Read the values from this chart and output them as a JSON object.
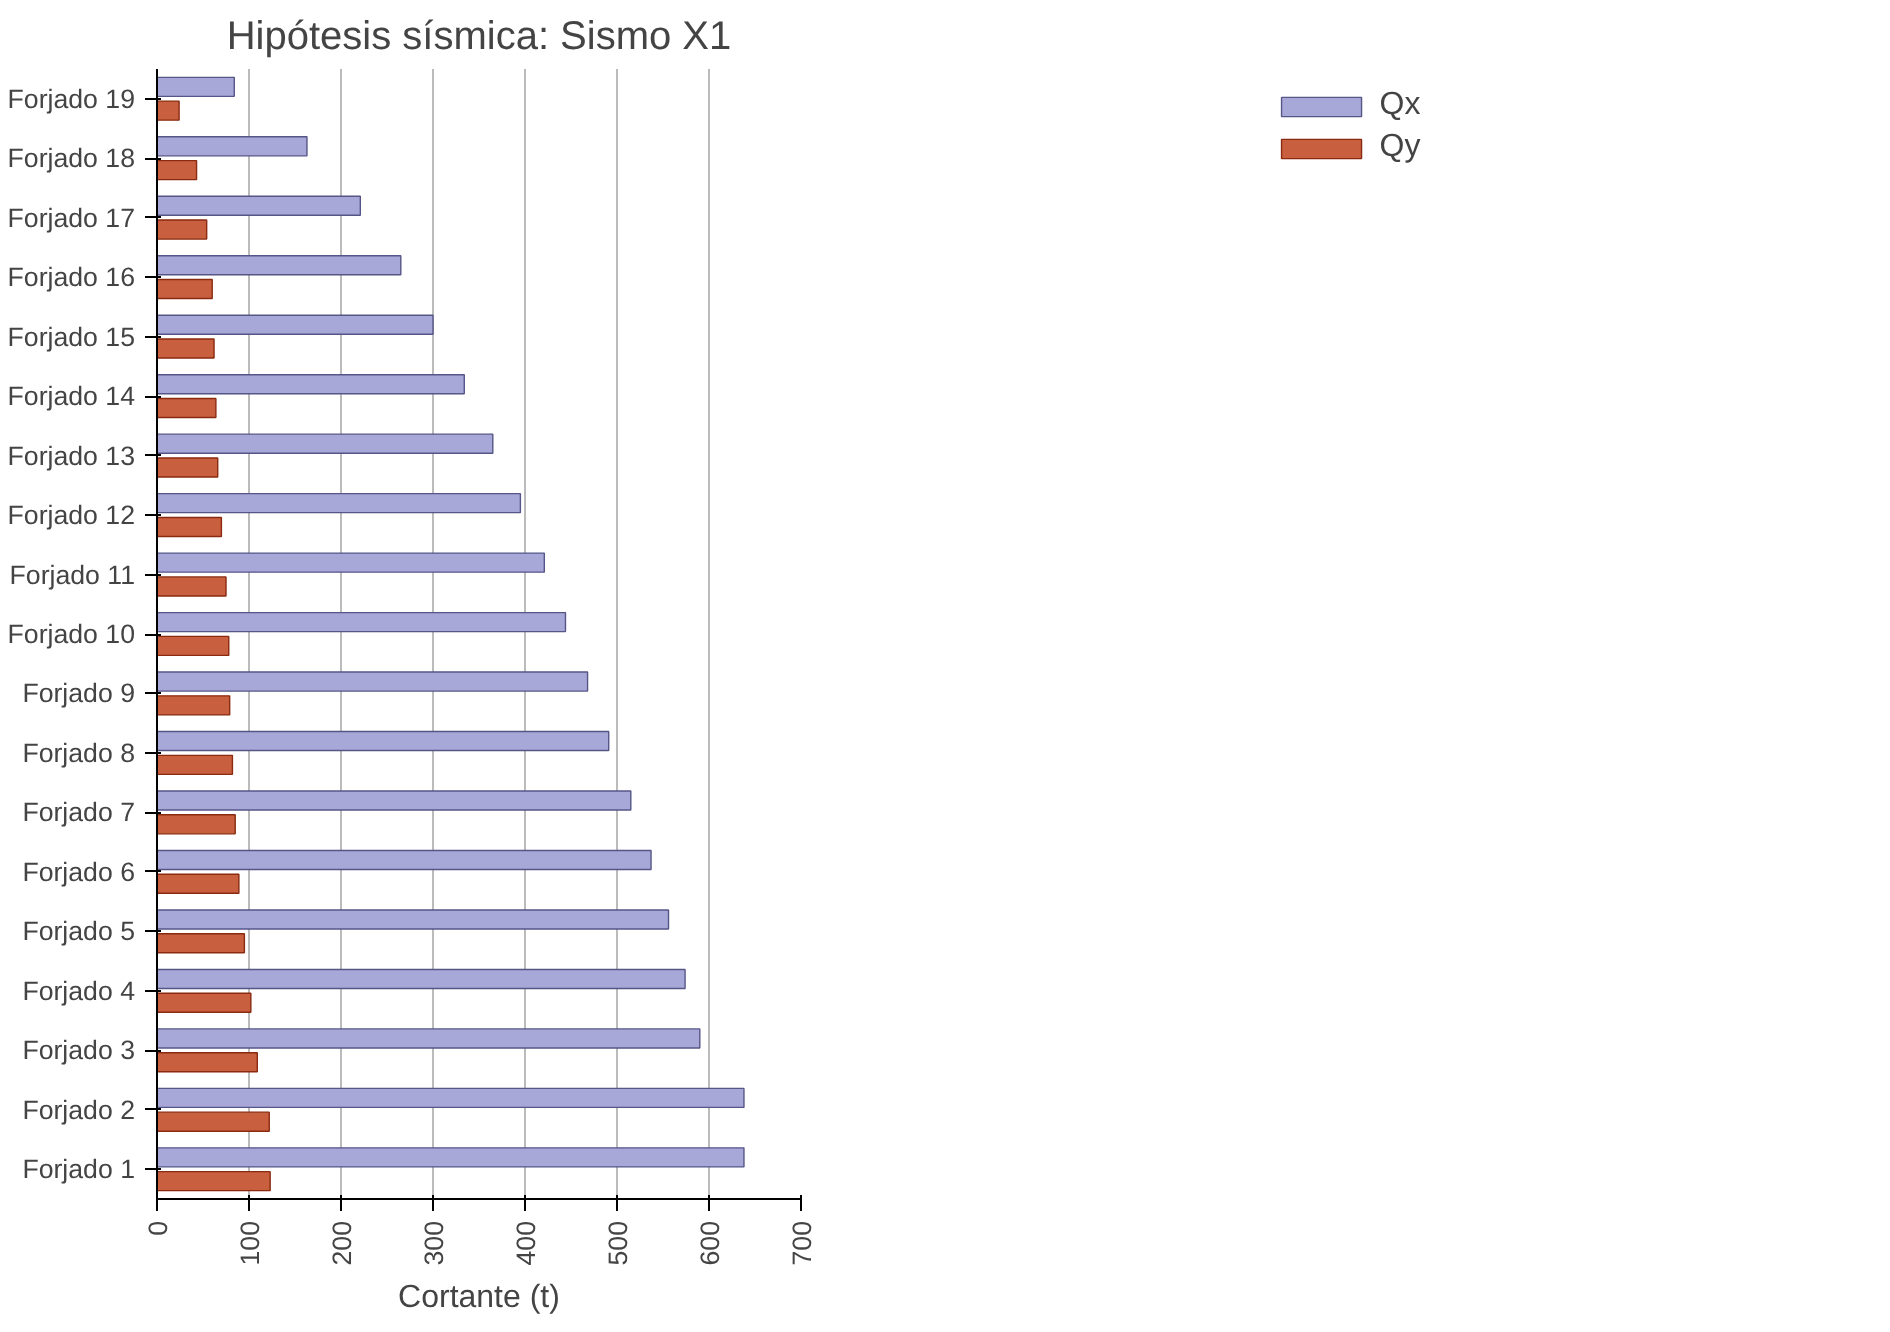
{
  "chart_data": {
    "type": "bar",
    "orientation": "horizontal",
    "title": "Hipótesis sísmica: Sismo X1",
    "xlabel": "Cortante (t)",
    "categories": [
      "Forjado 19",
      "Forjado 18",
      "Forjado 17",
      "Forjado 16",
      "Forjado 15",
      "Forjado 14",
      "Forjado 13",
      "Forjado 12",
      "Forjado 11",
      "Forjado 10",
      "Forjado 9",
      "Forjado 8",
      "Forjado 7",
      "Forjado 6",
      "Forjado 5",
      "Forjado 4",
      "Forjado 3",
      "Forjado 2",
      "Forjado 1"
    ],
    "series": [
      {
        "name": "Qx",
        "color": "#a8a8d8",
        "values": [
          84,
          163,
          221,
          265,
          300,
          334,
          365,
          395,
          421,
          444,
          468,
          491,
          515,
          537,
          556,
          574,
          590,
          638,
          638
        ]
      },
      {
        "name": "Qy",
        "color": "#c8603f",
        "values": [
          24,
          43,
          54,
          60,
          62,
          64,
          66,
          70,
          75,
          78,
          79,
          82,
          85,
          89,
          95,
          102,
          109,
          122,
          123
        ]
      }
    ],
    "xlim": [
      0,
      700
    ],
    "xticks": [
      0,
      100,
      200,
      300,
      400,
      500,
      600,
      700
    ],
    "grid": "x",
    "legend": "top right"
  }
}
